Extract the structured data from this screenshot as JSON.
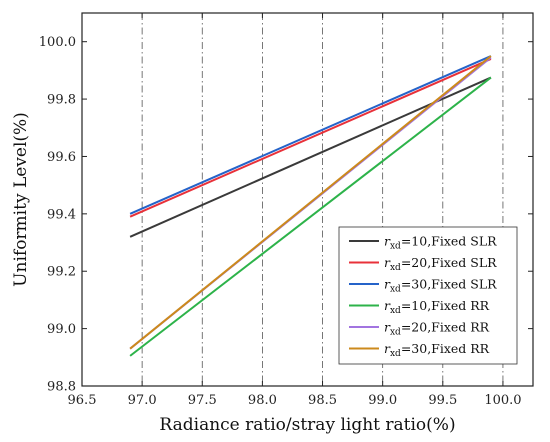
{
  "chart_data": {
    "type": "line",
    "xlabel": "Radiance ratio/stray light ratio(%)",
    "ylabel": "Uniformity Level(%)",
    "xlim": [
      96.5,
      100.25
    ],
    "ylim": [
      98.8,
      100.1
    ],
    "xticks": [
      96.5,
      97.0,
      97.5,
      98.0,
      98.5,
      99.0,
      99.5,
      100.0
    ],
    "yticks": [
      98.8,
      99.0,
      99.2,
      99.4,
      99.6,
      99.8,
      100.0
    ],
    "xtick_labels": [
      "96.5",
      "97.0",
      "97.5",
      "98.0",
      "98.5",
      "99.0",
      "99.5",
      "100.0"
    ],
    "ytick_labels": [
      "98.8",
      "99.0",
      "99.2",
      "99.4",
      "99.6",
      "99.8",
      "100.0"
    ],
    "grid": "vertical dashed",
    "legend_position": "bottom-right",
    "series": [
      {
        "name": "r_xd=10,Fixed SLR",
        "sub": "xd",
        "rest": "=10,Fixed SLR",
        "color": "#3a3a3a",
        "x": [
          96.9,
          99.9
        ],
        "y": [
          99.32,
          99.875
        ]
      },
      {
        "name": "r_xd=20,Fixed SLR",
        "sub": "xd",
        "rest": "=20,Fixed SLR",
        "color": "#e8313a",
        "x": [
          96.9,
          99.9
        ],
        "y": [
          99.39,
          99.94
        ]
      },
      {
        "name": "r_xd=30,Fixed SLR",
        "sub": "xd",
        "rest": "=30,Fixed SLR",
        "color": "#2563c9",
        "x": [
          96.9,
          99.9
        ],
        "y": [
          99.4,
          99.95
        ]
      },
      {
        "name": "r_xd=10,Fixed RR",
        "sub": "xd",
        "rest": "=10,Fixed RR",
        "color": "#2db34a",
        "x": [
          96.9,
          99.9
        ],
        "y": [
          98.905,
          99.875
        ]
      },
      {
        "name": "r_xd=20,Fixed RR",
        "sub": "xd",
        "rest": "=20,Fixed RR",
        "color": "#a274e0",
        "x": [
          96.9,
          99.9
        ],
        "y": [
          98.93,
          99.945
        ]
      },
      {
        "name": "r_xd=30,Fixed RR",
        "sub": "xd",
        "rest": "=30,Fixed RR",
        "color": "#cc8a1c",
        "x": [
          96.9,
          99.9
        ],
        "y": [
          98.93,
          99.95
        ]
      }
    ]
  }
}
